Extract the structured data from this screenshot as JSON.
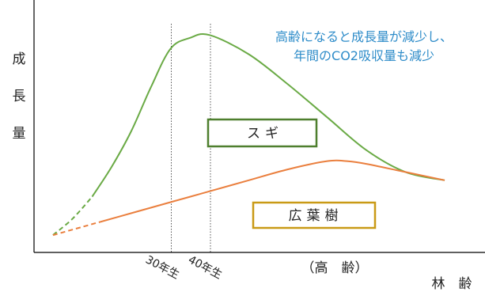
{
  "chart_data": {
    "type": "line",
    "ylabel": "成長量",
    "xlabel": "林　齢",
    "x_annotation": "（高　齢）",
    "ticks": [
      "30年生",
      "40年生"
    ],
    "annotation": [
      "高齢になると成長量が減少し、",
      "年間のCO2吸収量も減少"
    ],
    "series": [
      {
        "name": "スギ",
        "color": "#6aaa45",
        "values": [
          [
            0,
            2
          ],
          [
            5,
            8
          ],
          [
            10,
            16
          ],
          [
            15,
            27
          ],
          [
            20,
            40
          ],
          [
            25,
            56
          ],
          [
            30,
            70
          ],
          [
            35,
            74
          ],
          [
            40,
            75
          ],
          [
            50,
            68
          ],
          [
            60,
            57
          ],
          [
            70,
            45
          ],
          [
            80,
            33
          ],
          [
            90,
            25
          ],
          [
            100,
            22
          ]
        ],
        "dashed_until": 10
      },
      {
        "name": "広葉樹",
        "color": "#ea7f3e",
        "values": [
          [
            0,
            2
          ],
          [
            10,
            6
          ],
          [
            20,
            10
          ],
          [
            30,
            14
          ],
          [
            40,
            18
          ],
          [
            50,
            22
          ],
          [
            60,
            26
          ],
          [
            70,
            29
          ],
          [
            75,
            29
          ],
          [
            80,
            28
          ],
          [
            90,
            25
          ],
          [
            100,
            22
          ]
        ],
        "dashed_until": 12
      }
    ],
    "reference_lines": [
      30,
      40
    ],
    "grid": false,
    "legend": "inline"
  }
}
